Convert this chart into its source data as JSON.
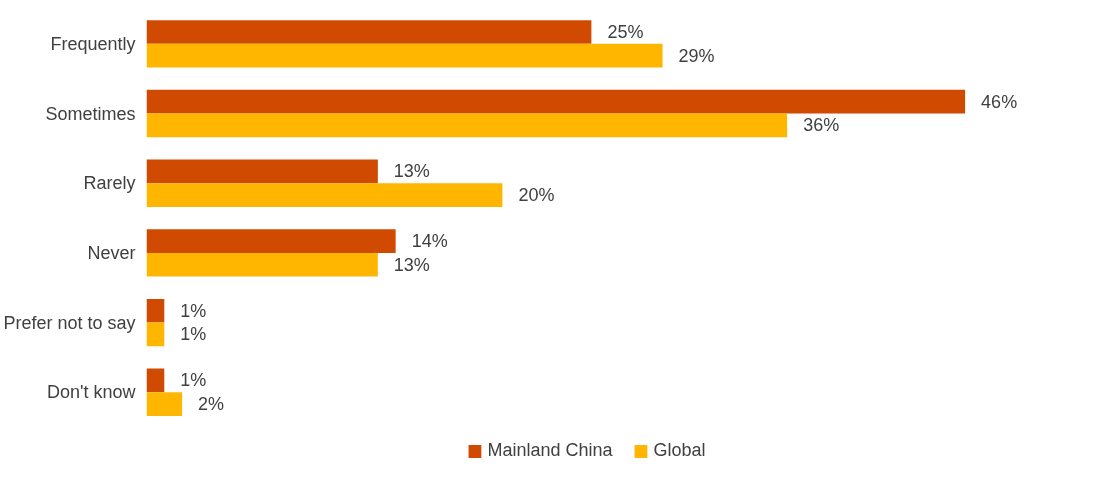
{
  "chart_data": {
    "type": "bar",
    "orientation": "horizontal",
    "categories": [
      "Frequently",
      "Sometimes",
      "Rarely",
      "Never",
      "Prefer not to say",
      "Don't know"
    ],
    "series": [
      {
        "name": "Mainland China",
        "color": "#d04a02",
        "values": [
          25,
          46,
          13,
          14,
          1,
          1
        ],
        "value_labels": [
          "25%",
          "46%",
          "13%",
          "14%",
          "1%",
          "1%"
        ]
      },
      {
        "name": "Global",
        "color": "#ffb600",
        "values": [
          29,
          36,
          20,
          13,
          1,
          2
        ],
        "value_labels": [
          "29%",
          "36%",
          "20%",
          "13%",
          "1%",
          "2%"
        ]
      }
    ],
    "tick_labels": "y",
    "grid": false,
    "legend": "bottom"
  }
}
